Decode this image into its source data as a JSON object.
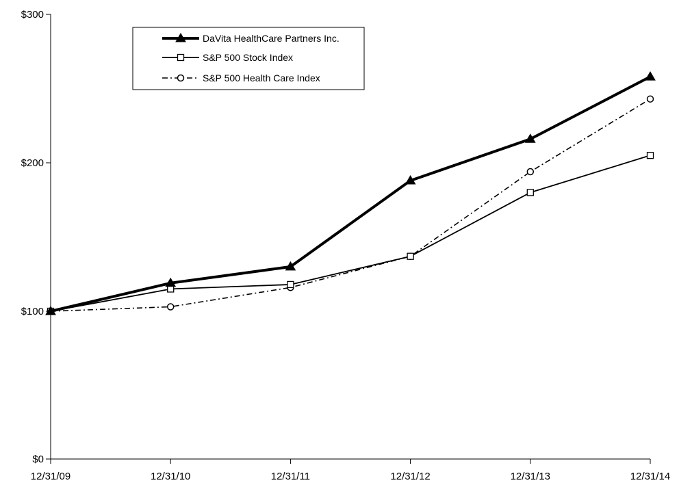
{
  "chart_data": {
    "type": "line",
    "title": "",
    "xlabel": "",
    "ylabel": "",
    "categories": [
      "12/31/09",
      "12/31/10",
      "12/31/11",
      "12/31/12",
      "12/31/13",
      "12/31/14"
    ],
    "y_ticks": [
      0,
      100,
      200,
      300
    ],
    "y_tick_labels": [
      "$0",
      "$100",
      "$200",
      "$300"
    ],
    "ylim": [
      0,
      300
    ],
    "y_scale": "piecewise-linear",
    "grid": false,
    "legend_position": "top-left",
    "series": [
      {
        "name": "DaVita HealthCare Partners Inc.",
        "values": [
          100,
          119,
          130,
          188,
          216,
          258
        ],
        "marker": "filled-triangle",
        "line": "solid-thick",
        "color": "#000000"
      },
      {
        "name": "S&P 500 Stock Index",
        "values": [
          100,
          115,
          118,
          137,
          180,
          205
        ],
        "marker": "open-square",
        "line": "solid",
        "color": "#000000"
      },
      {
        "name": "S&P 500 Health Care Index",
        "values": [
          100,
          103,
          116,
          137,
          194,
          243
        ],
        "marker": "open-circle",
        "line": "dashed",
        "color": "#000000"
      }
    ]
  }
}
